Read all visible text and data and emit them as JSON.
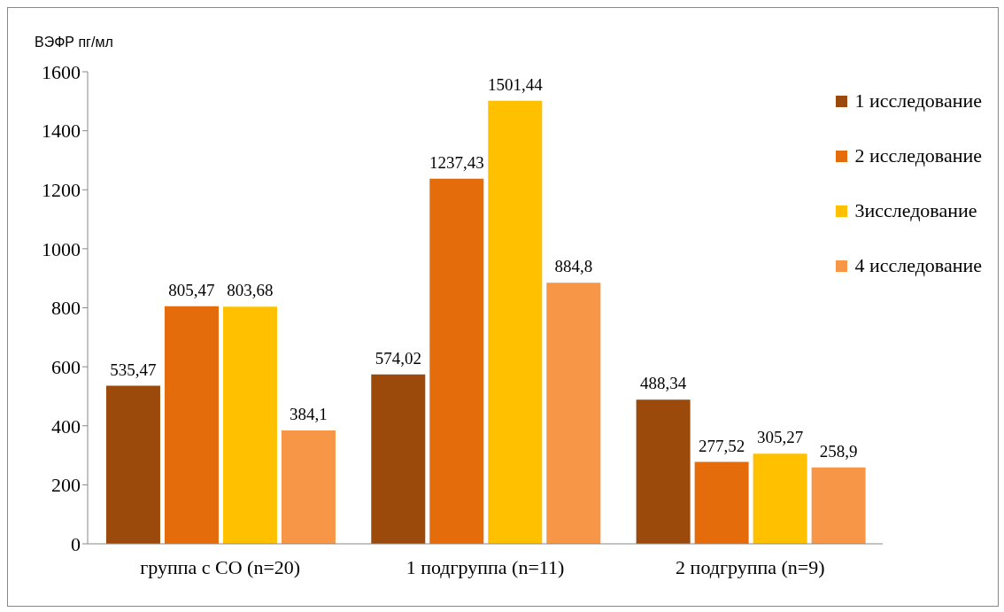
{
  "chart_data": {
    "type": "bar",
    "ylabel": "ВЭФР пг/мл",
    "categories": [
      "группа с СО (n=20)",
      "1 подгруппа (n=11)",
      "2 подгруппа (n=9)"
    ],
    "series": [
      {
        "name": "1 исследование",
        "color": "#9b4a0b",
        "values": [
          535.47,
          574.02,
          488.34
        ],
        "value_labels": [
          "535,47",
          "574,02",
          "488,34"
        ]
      },
      {
        "name": "2 исследование",
        "color": "#e46c0a",
        "values": [
          805.47,
          1237.43,
          277.52
        ],
        "value_labels": [
          "805,47",
          "1237,43",
          "277,52"
        ]
      },
      {
        "name": "3исследование",
        "color": "#ffc000",
        "values": [
          803.68,
          1501.44,
          305.27
        ],
        "value_labels": [
          "803,68",
          "1501,44",
          "305,27"
        ]
      },
      {
        "name": "4 исследование",
        "color": "#f79646",
        "values": [
          384.1,
          884.8,
          258.9
        ],
        "value_labels": [
          "384,1",
          "884,8",
          "258,9"
        ]
      }
    ],
    "ylim": [
      0,
      1600
    ],
    "yticks": [
      0,
      200,
      400,
      600,
      800,
      1000,
      1200,
      1400,
      1600
    ],
    "grid": false,
    "legend": "top right"
  }
}
